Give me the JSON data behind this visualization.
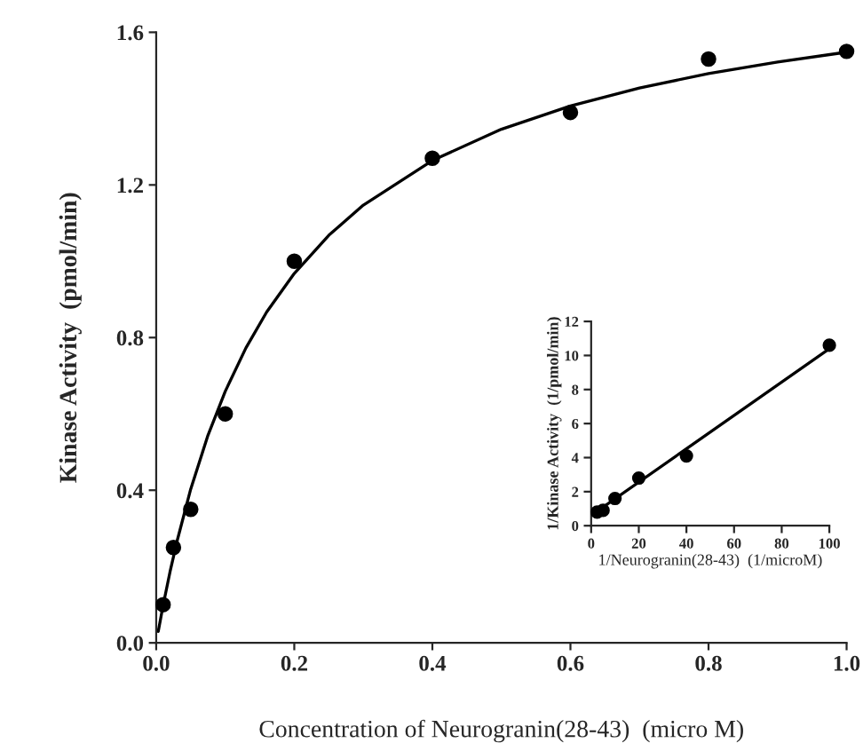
{
  "chart_data": [
    {
      "type": "scatter",
      "xlabel": "Concentration of Neurogranin(28-43)  (micro M)",
      "ylabel": "Kinase Activity  (pmol/min)",
      "xlim": [
        0,
        1.0
      ],
      "ylim": [
        0,
        1.6
      ],
      "xticks": [
        {
          "value": 0,
          "label": "0.0"
        },
        0.2,
        0.4,
        0.6,
        0.8,
        {
          "value": 1,
          "label": "1.0"
        }
      ],
      "yticks": [
        {
          "value": 0,
          "label": "0.0"
        },
        0.4,
        0.8,
        1.2,
        1.6
      ],
      "grid": false,
      "legend": false,
      "series": [
        {
          "color": "#000000",
          "marker": "circle",
          "x": [
            0.01,
            0.025,
            0.05,
            0.1,
            0.2,
            0.4,
            0.6,
            0.8,
            1.0
          ],
          "values": [
            0.1,
            0.25,
            0.35,
            0.6,
            1.0,
            1.27,
            1.39,
            1.53,
            1.55
          ]
        },
        {
          "type": "line",
          "color": "#000000",
          "marker": "none",
          "line_style": "solid",
          "x": [
            0.003,
            0.01,
            0.02,
            0.03,
            0.05,
            0.075,
            0.1,
            0.13,
            0.16,
            0.2,
            0.25,
            0.3,
            0.4,
            0.5,
            0.6,
            0.7,
            0.8,
            0.9,
            1.0
          ],
          "values": [
            0.03,
            0.098,
            0.186,
            0.265,
            0.403,
            0.544,
            0.659,
            0.773,
            0.867,
            0.968,
            1.068,
            1.147,
            1.264,
            1.346,
            1.407,
            1.454,
            1.492,
            1.522,
            1.548
          ]
        }
      ]
    },
    {
      "type": "scatter",
      "xlabel": "1/Neurogranin(28-43)  (1/microM)",
      "ylabel": "1/Kinase Activity  (1/pmol/min)",
      "xlim": [
        0,
        100
      ],
      "ylim": [
        0,
        12
      ],
      "xticks": [
        0,
        20,
        40,
        60,
        80,
        100
      ],
      "yticks": [
        0,
        2,
        4,
        6,
        8,
        10,
        12
      ],
      "grid": false,
      "legend": false,
      "series": [
        {
          "color": "#000000",
          "marker": "circle",
          "x": [
            2.5,
            5,
            10,
            20,
            40,
            100
          ],
          "values": [
            0.8,
            0.9,
            1.6,
            2.8,
            4.1,
            10.6
          ]
        },
        {
          "type": "line",
          "color": "#000000",
          "marker": "none",
          "line_style": "solid",
          "x": [
            0,
            100
          ],
          "values": [
            0.6,
            10.4
          ]
        }
      ]
    }
  ]
}
